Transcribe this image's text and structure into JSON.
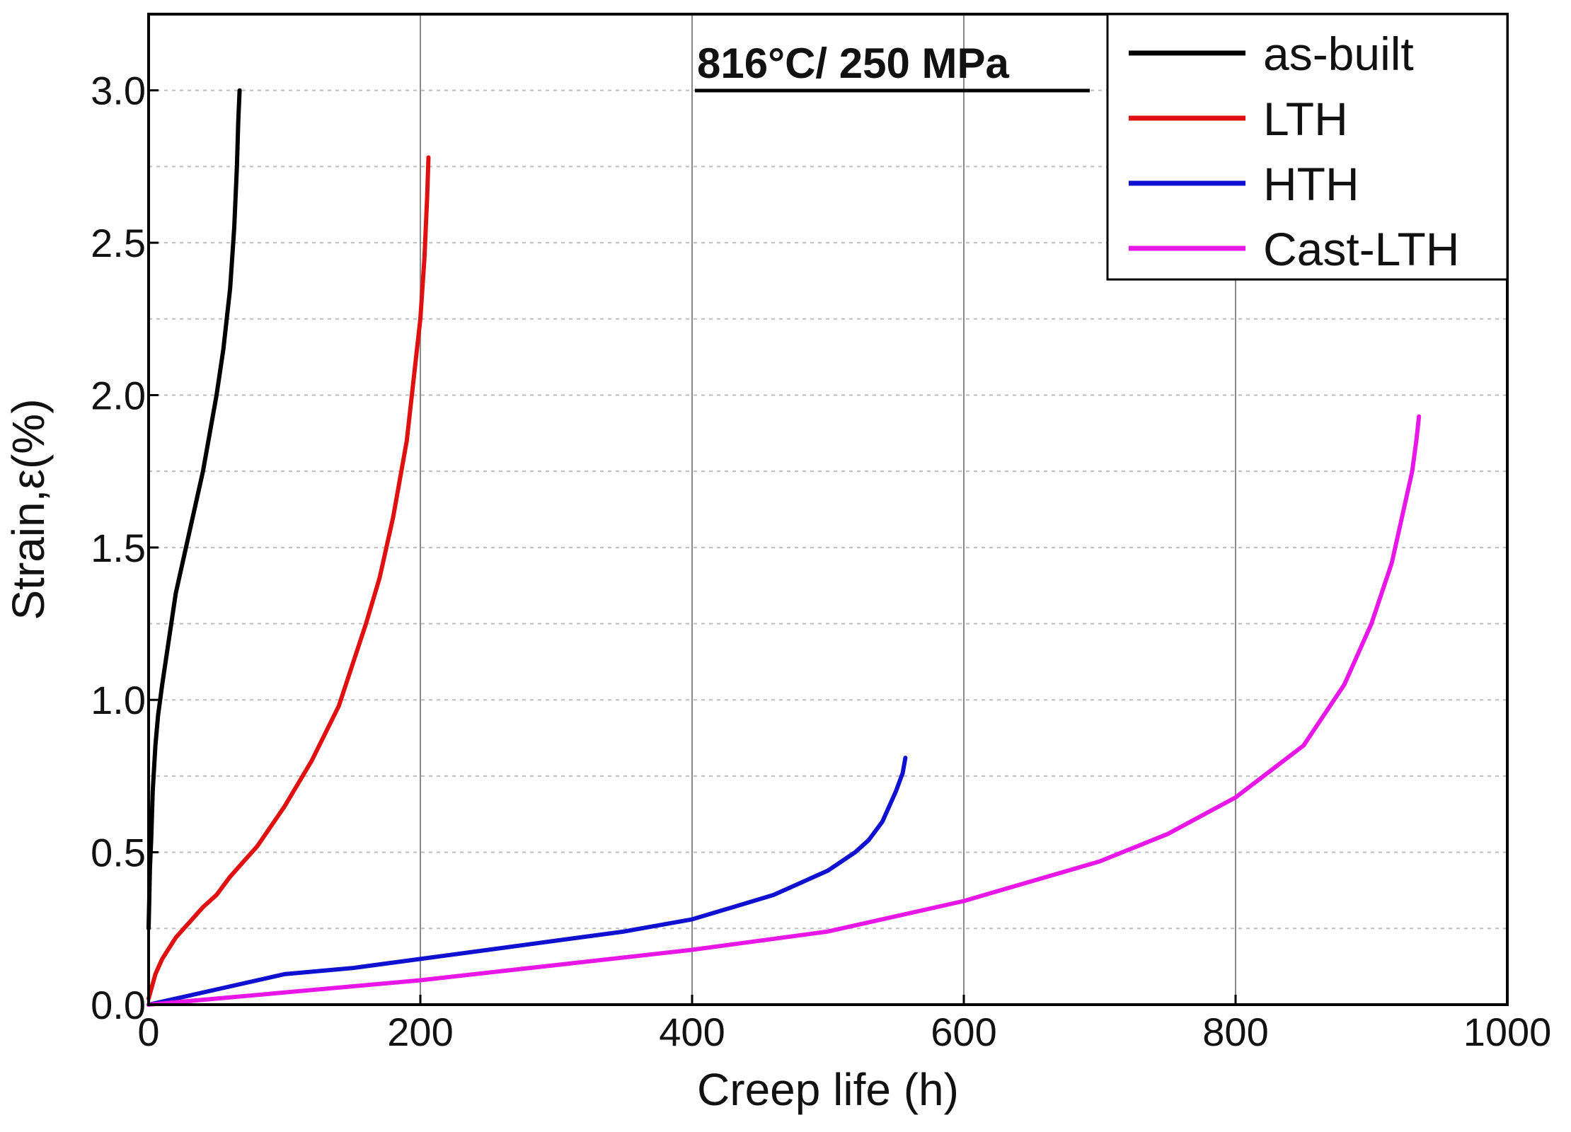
{
  "chart_data": {
    "type": "line",
    "title": "",
    "annotation": "816°C/ 250 MPa",
    "xlabel": "Creep life (h)",
    "ylabel": "Strain,ε(%)",
    "xlim": [
      0,
      1000
    ],
    "ylim": [
      0,
      3.25
    ],
    "x_ticks": [
      0,
      200,
      400,
      600,
      800,
      1000
    ],
    "x_tick_labels": [
      "0",
      "200",
      "400",
      "600",
      "800",
      "1000"
    ],
    "y_ticks": [
      0,
      0.5,
      1.0,
      1.5,
      2.0,
      2.5,
      3.0
    ],
    "y_tick_labels": [
      "0.0",
      "0.5",
      "1.0",
      "1.5",
      "2.0",
      "2.5",
      "3.0"
    ],
    "grid": "vertical solid at x ticks, horizontal dotted at 0.25 intervals",
    "legend_position": "top-right",
    "series": [
      {
        "name": "as-built",
        "color": "#000000",
        "x": [
          0,
          1,
          2,
          3,
          5,
          7,
          10,
          15,
          20,
          30,
          40,
          50,
          55,
          60,
          63,
          65,
          66,
          67
        ],
        "y": [
          0.25,
          0.45,
          0.55,
          0.7,
          0.85,
          0.95,
          1.05,
          1.2,
          1.35,
          1.55,
          1.75,
          2.0,
          2.15,
          2.35,
          2.55,
          2.75,
          2.9,
          3.0
        ]
      },
      {
        "name": "LTH",
        "color": "#e01010",
        "x": [
          0,
          5,
          10,
          20,
          30,
          40,
          50,
          60,
          70,
          80,
          100,
          120,
          140,
          160,
          170,
          180,
          190,
          195,
          200,
          203,
          205,
          206
        ],
        "y": [
          0.02,
          0.1,
          0.15,
          0.22,
          0.27,
          0.32,
          0.36,
          0.42,
          0.47,
          0.52,
          0.65,
          0.8,
          0.98,
          1.25,
          1.4,
          1.6,
          1.85,
          2.05,
          2.25,
          2.45,
          2.65,
          2.78
        ]
      },
      {
        "name": "HTH",
        "color": "#1010d0",
        "x": [
          0,
          20,
          50,
          100,
          150,
          200,
          250,
          300,
          350,
          400,
          430,
          460,
          480,
          500,
          520,
          530,
          540,
          545,
          550,
          555,
          557
        ],
        "y": [
          0.0,
          0.02,
          0.05,
          0.1,
          0.12,
          0.15,
          0.18,
          0.21,
          0.24,
          0.28,
          0.32,
          0.36,
          0.4,
          0.44,
          0.5,
          0.54,
          0.6,
          0.65,
          0.7,
          0.76,
          0.81
        ]
      },
      {
        "name": "Cast-LTH",
        "color": "#e817e8",
        "x": [
          0,
          100,
          200,
          300,
          400,
          500,
          600,
          700,
          750,
          800,
          850,
          880,
          900,
          915,
          925,
          930,
          933,
          935
        ],
        "y": [
          0.0,
          0.04,
          0.08,
          0.13,
          0.18,
          0.24,
          0.34,
          0.47,
          0.56,
          0.68,
          0.85,
          1.05,
          1.25,
          1.45,
          1.65,
          1.75,
          1.85,
          1.93
        ]
      }
    ]
  }
}
